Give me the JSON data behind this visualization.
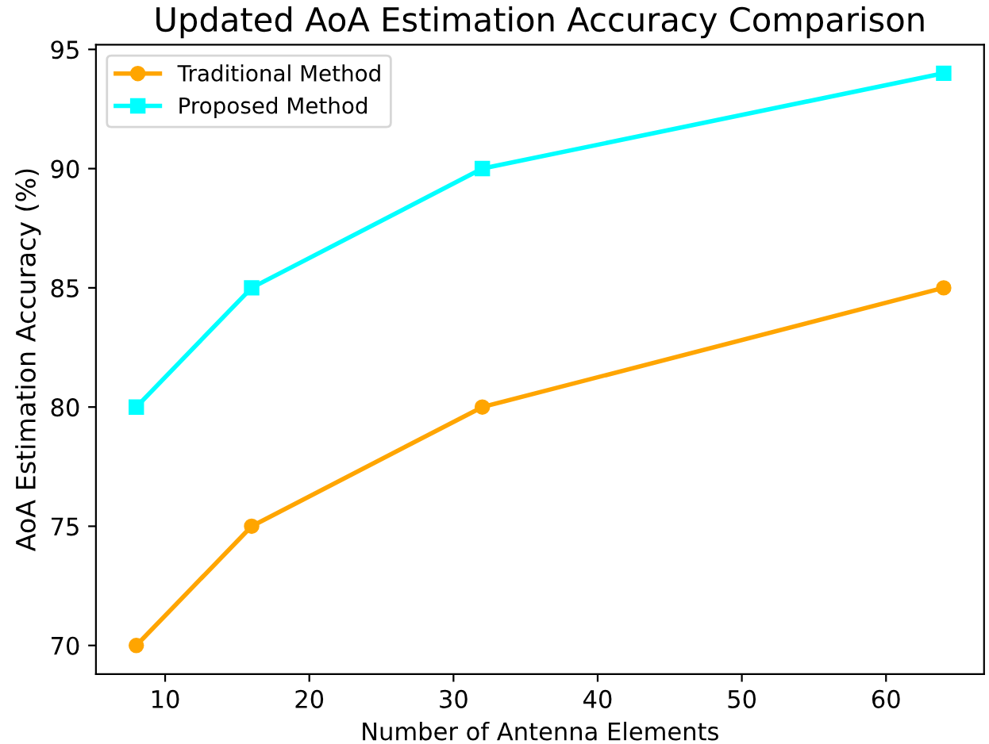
{
  "chart_data": {
    "type": "line",
    "title": "Updated AoA Estimation Accuracy Comparison",
    "xlabel": "Number of Antenna Elements",
    "ylabel": "AoA Estimation Accuracy (%)",
    "x": [
      8,
      16,
      32,
      64
    ],
    "series": [
      {
        "name": "Traditional Method",
        "color": "#ffa500",
        "marker": "circle",
        "values": [
          70,
          75,
          80,
          85
        ]
      },
      {
        "name": "Proposed Method",
        "color": "#00ffff",
        "marker": "square",
        "values": [
          80,
          85,
          90,
          94
        ]
      }
    ],
    "xlim": [
      5.2,
      66.8
    ],
    "xticks": [
      10,
      20,
      30,
      40,
      50,
      60
    ],
    "ylim": [
      68.8,
      95.2
    ],
    "yticks": [
      70,
      75,
      80,
      85,
      90,
      95
    ],
    "grid": false,
    "legend": "top left",
    "line_style": "solid"
  }
}
